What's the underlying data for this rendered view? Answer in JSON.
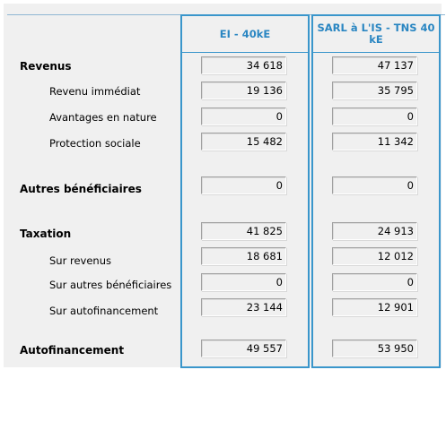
{
  "columns": [
    {
      "title": "EI - 40kE"
    },
    {
      "title": "SARL à L'IS - TNS 40 kE"
    }
  ],
  "rows": [
    {
      "label": "Revenus",
      "kind": "main",
      "values": [
        "34 618",
        "47 137"
      ]
    },
    {
      "label": "Revenu immédiat",
      "kind": "sub",
      "values": [
        "19 136",
        "35 795"
      ]
    },
    {
      "label": "Avantages en nature",
      "kind": "sub",
      "values": [
        "0",
        "0"
      ]
    },
    {
      "label": "Protection sociale",
      "kind": "sub",
      "values": [
        "15 482",
        "11 342"
      ]
    },
    {
      "label": "Autres bénéficiaires",
      "kind": "main",
      "values": [
        "0",
        "0"
      ]
    },
    {
      "label": "Taxation",
      "kind": "main",
      "values": [
        "41 825",
        "24 913"
      ]
    },
    {
      "label": "Sur revenus",
      "kind": "sub",
      "values": [
        "18 681",
        "12 012"
      ]
    },
    {
      "label": "Sur autres bénéficiaires",
      "kind": "sub",
      "values": [
        "0",
        "0"
      ]
    },
    {
      "label": "Sur autofinancement",
      "kind": "sub",
      "values": [
        "23 144",
        "12 901"
      ]
    },
    {
      "label": "Autofinancement",
      "kind": "main",
      "values": [
        "49 557",
        "53 950"
      ]
    }
  ]
}
